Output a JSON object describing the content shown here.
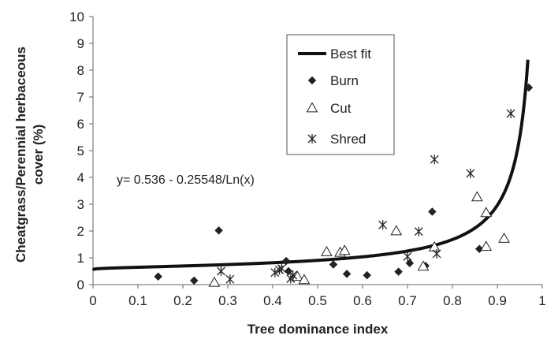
{
  "chart_data": {
    "type": "scatter",
    "xlabel": "Tree dominance index",
    "ylabel": "Cheatgrass/Perennial herbaceous cover (%)",
    "xlim": [
      0,
      1
    ],
    "ylim": [
      0,
      10
    ],
    "xticks": [
      "0",
      "0.1",
      "0.2",
      "0.3",
      "0.4",
      "0.5",
      "0.6",
      "0.7",
      "0.8",
      "0.9",
      "1"
    ],
    "yticks": [
      "0",
      "1",
      "2",
      "3",
      "4",
      "5",
      "6",
      "7",
      "8",
      "9",
      "10"
    ],
    "grid": false,
    "legend_position": "top-center",
    "annotation": "y= 0.536 - 0.25548/Ln(x)",
    "fit": {
      "name": "Best fit",
      "a": 0.536,
      "b": 0.25548,
      "x_start": 0,
      "x_end": 0.968
    },
    "series": [
      {
        "name": "Burn",
        "marker": "diamond",
        "color": "#222222",
        "points": [
          [
            0.145,
            0.3
          ],
          [
            0.225,
            0.15
          ],
          [
            0.28,
            2.02
          ],
          [
            0.43,
            0.88
          ],
          [
            0.435,
            0.5
          ],
          [
            0.535,
            0.75
          ],
          [
            0.565,
            0.4
          ],
          [
            0.61,
            0.35
          ],
          [
            0.68,
            0.48
          ],
          [
            0.705,
            0.8
          ],
          [
            0.74,
            0.7
          ],
          [
            0.755,
            2.72
          ],
          [
            0.86,
            1.33
          ],
          [
            0.97,
            7.35
          ]
        ]
      },
      {
        "name": "Cut",
        "marker": "triangle-open",
        "color": "#222222",
        "points": [
          [
            0.27,
            0.08
          ],
          [
            0.455,
            0.3
          ],
          [
            0.47,
            0.18
          ],
          [
            0.52,
            1.22
          ],
          [
            0.55,
            1.2
          ],
          [
            0.56,
            1.27
          ],
          [
            0.675,
            2.0
          ],
          [
            0.735,
            0.68
          ],
          [
            0.76,
            1.4
          ],
          [
            0.855,
            3.27
          ],
          [
            0.875,
            1.42
          ],
          [
            0.875,
            2.68
          ],
          [
            0.915,
            1.72
          ]
        ]
      },
      {
        "name": "Shred",
        "marker": "asterisk",
        "color": "#222222",
        "points": [
          [
            0.285,
            0.5
          ],
          [
            0.305,
            0.2
          ],
          [
            0.405,
            0.45
          ],
          [
            0.415,
            0.55
          ],
          [
            0.42,
            0.6
          ],
          [
            0.44,
            0.22
          ],
          [
            0.445,
            0.35
          ],
          [
            0.645,
            2.23
          ],
          [
            0.7,
            1.05
          ],
          [
            0.725,
            1.98
          ],
          [
            0.76,
            4.67
          ],
          [
            0.765,
            1.15
          ],
          [
            0.84,
            4.15
          ],
          [
            0.93,
            6.38
          ]
        ]
      }
    ]
  }
}
